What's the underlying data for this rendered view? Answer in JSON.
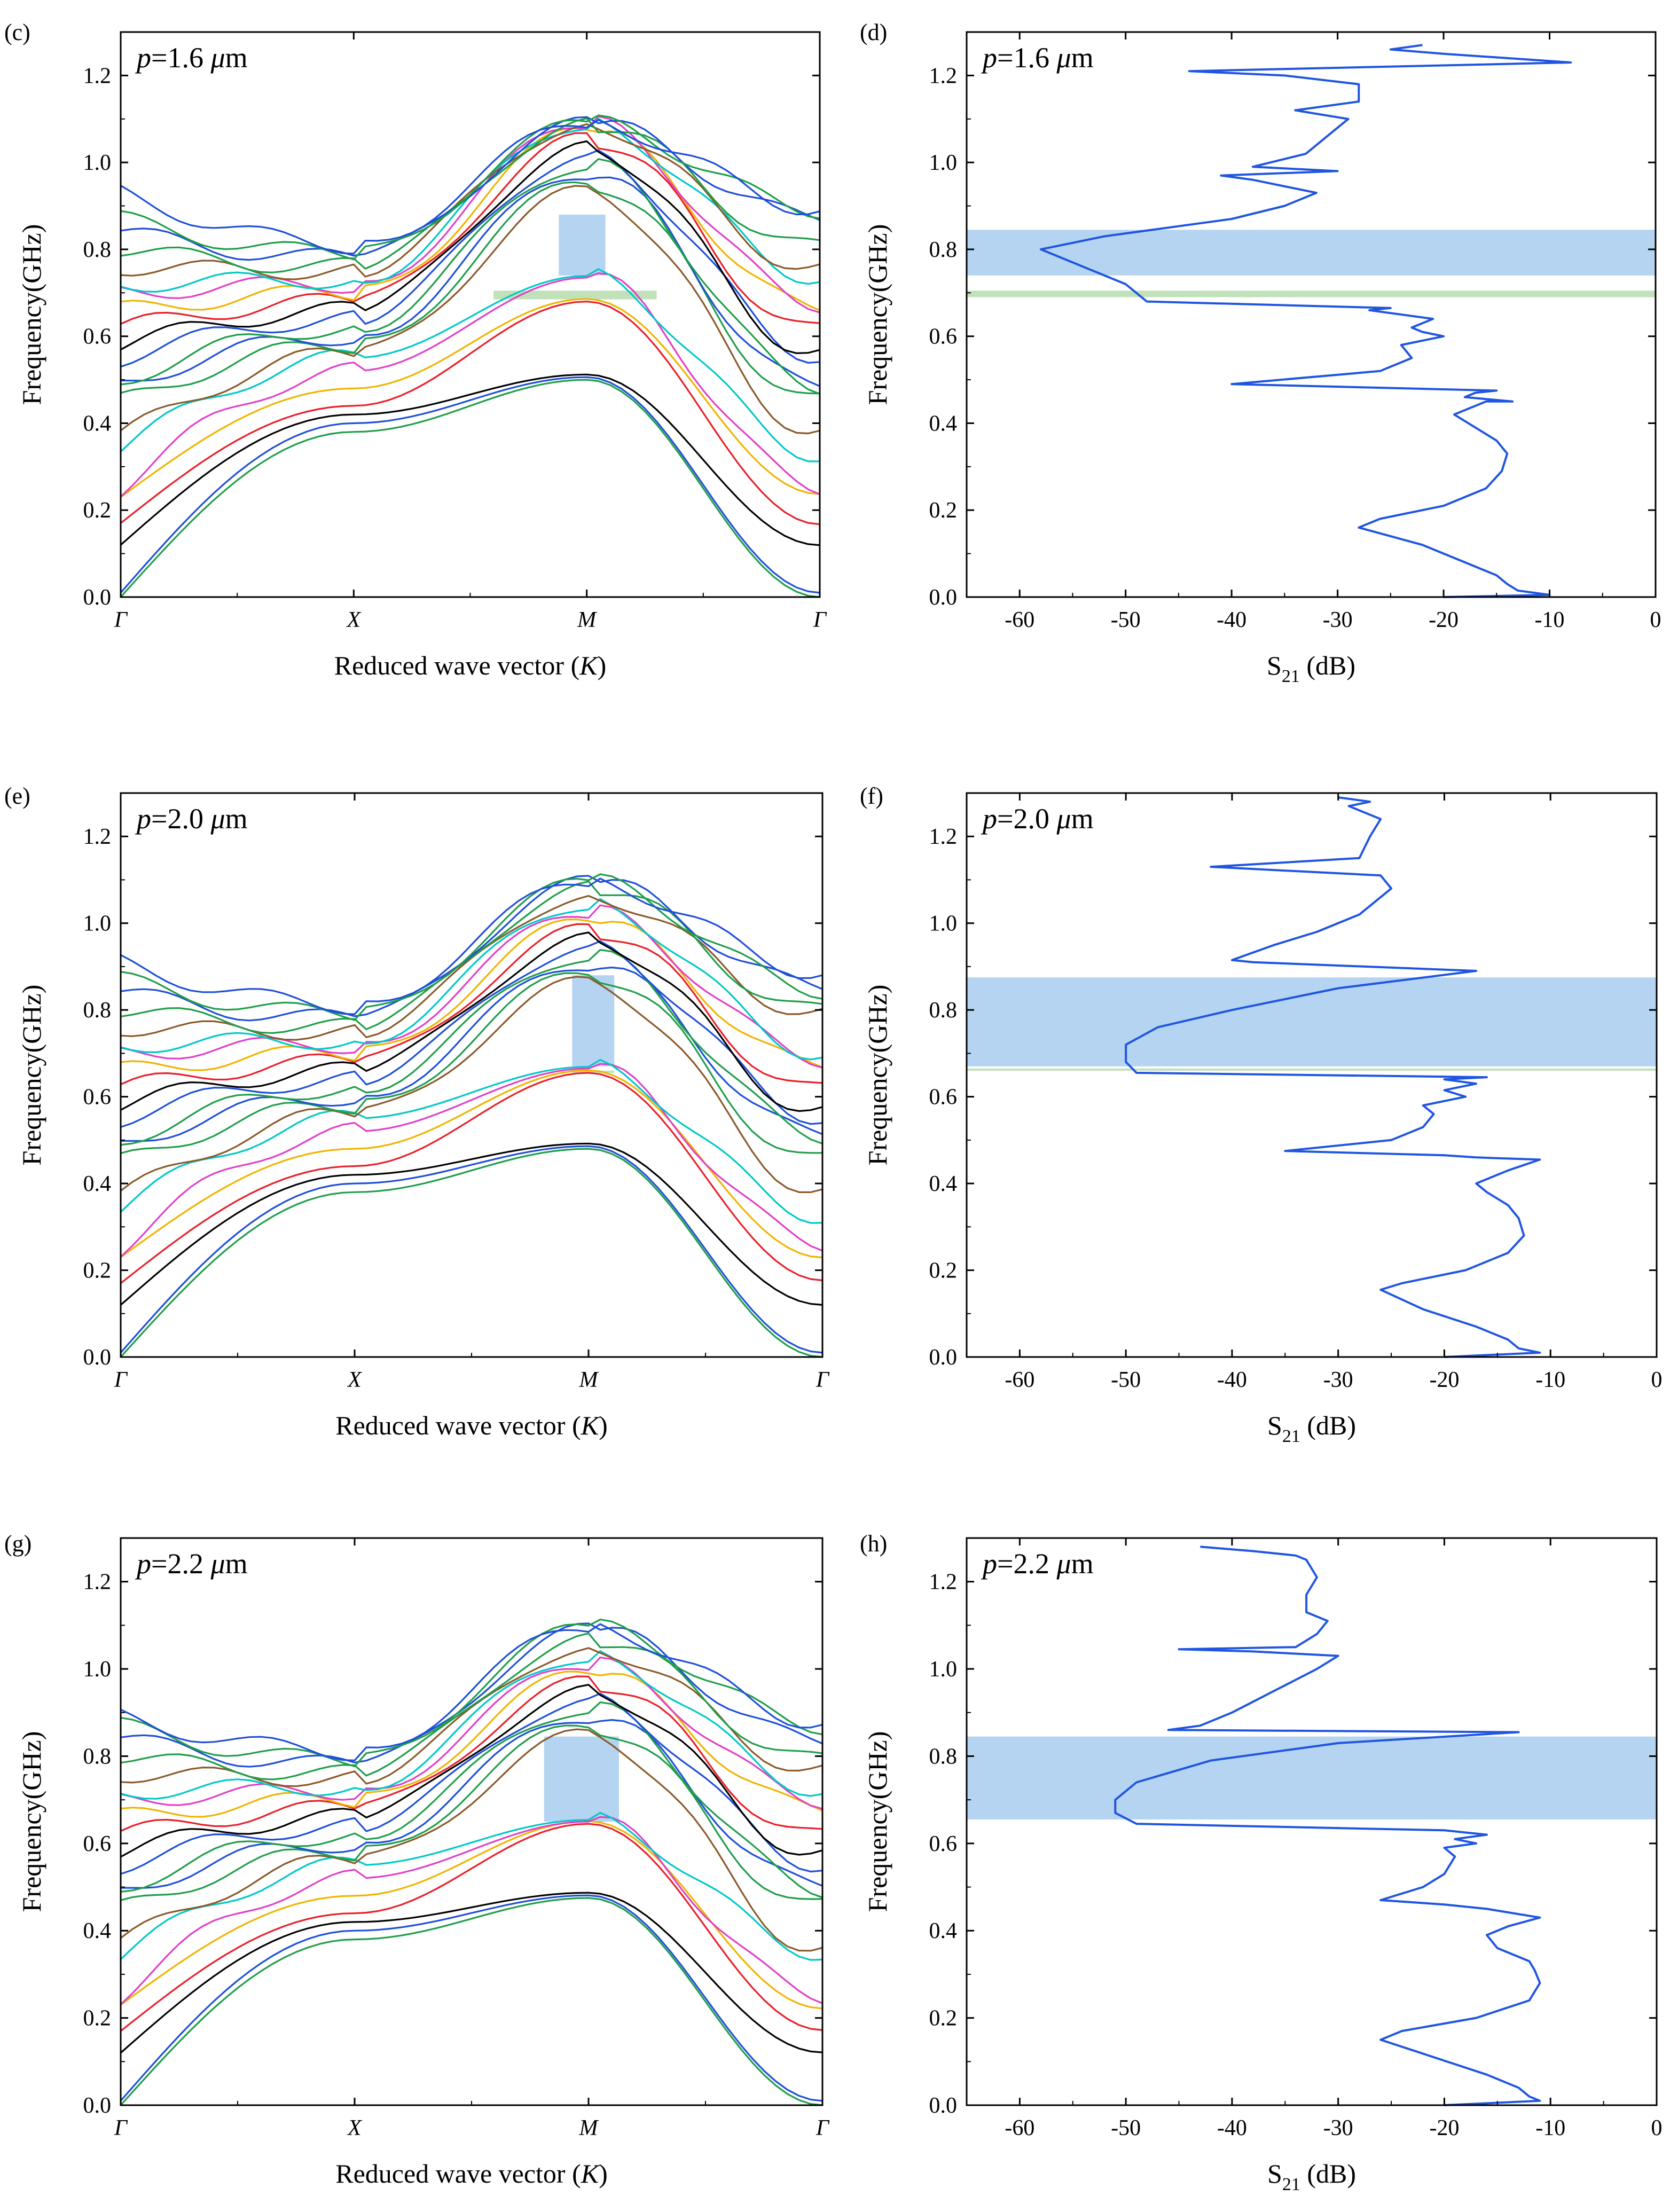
{
  "figure": {
    "colors": {
      "band_palette": [
        "#1f9e4a",
        "#1f4fd8",
        "#000000",
        "#e8202a",
        "#f0b400",
        "#e040c8",
        "#00c8c8",
        "#8a5a2a",
        "#1f9e4a",
        "#1f4fd8"
      ],
      "s21_line": "#1f55e0",
      "gap_blue": "#a8cdee",
      "gap_green": "#b6dcae"
    }
  },
  "chart_data": [
    {
      "id": "c",
      "panel_label": "(c)",
      "type": "line",
      "title": "p=1.6 μm",
      "annotation": {
        "sym": "p",
        "rest": "=1.6 ",
        "unit_sym": "μ",
        "unit": "m"
      },
      "xlabel": "Reduced wave vector (K)",
      "xlabel_parts": {
        "pre": "Reduced wave vector (",
        "sym": "K",
        "post": ")"
      },
      "ylabel": "Frequency(GHz)",
      "x_ticks": [
        "Γ",
        "X",
        "M",
        "Γ"
      ],
      "x_tick_positions": [
        0,
        1,
        2,
        3
      ],
      "xlim": [
        0,
        3
      ],
      "ylim": [
        0,
        1.3
      ],
      "y_ticks": [
        "0.0",
        "0.2",
        "0.4",
        "0.6",
        "0.8",
        "1.0",
        "1.2"
      ],
      "y_tick_values": [
        0,
        0.2,
        0.4,
        0.6,
        0.8,
        1.0,
        1.2
      ],
      "gaps": [
        {
          "kind": "blue",
          "x": [
            1.88,
            2.08
          ],
          "y": [
            0.74,
            0.88
          ]
        },
        {
          "kind": "green",
          "x": [
            1.6,
            2.3
          ],
          "y": [
            0.685,
            0.705
          ]
        }
      ],
      "band_params": {
        "top": 1.09,
        "acoustic": 0.5,
        "opt_low": 0.68,
        "opt_gap": 0.735,
        "edge_max": 0.93
      }
    },
    {
      "id": "d",
      "panel_label": "(d)",
      "type": "line",
      "title": "p=1.6 μm",
      "annotation": {
        "sym": "p",
        "rest": "=1.6 ",
        "unit_sym": "μ",
        "unit": "m"
      },
      "xlabel": "S21 (dB)",
      "xlabel_parts": {
        "pre": "S",
        "sub": "21",
        "post": " (dB)"
      },
      "ylabel": "Frequency(GHz)",
      "xlim": [
        -65,
        0
      ],
      "ylim": [
        0,
        1.3
      ],
      "x_ticks": [
        "-60",
        "-50",
        "-40",
        "-30",
        "-20",
        "-10",
        "0"
      ],
      "x_tick_values": [
        -60,
        -50,
        -40,
        -30,
        -20,
        -10,
        0
      ],
      "y_ticks": [
        "0.0",
        "0.2",
        "0.4",
        "0.6",
        "0.8",
        "1.0",
        "1.2"
      ],
      "y_tick_values": [
        0,
        0.2,
        0.4,
        0.6,
        0.8,
        1.0,
        1.2
      ],
      "gaps": [
        {
          "kind": "blue",
          "y": [
            0.74,
            0.845
          ]
        },
        {
          "kind": "green",
          "y": [
            0.69,
            0.705
          ]
        }
      ],
      "series": [
        {
          "name": "S21",
          "points": [
            [
              -20,
              0.0
            ],
            [
              -10,
              0.005
            ],
            [
              -13,
              0.015
            ],
            [
              -14,
              0.03
            ],
            [
              -15,
              0.05
            ],
            [
              -18,
              0.08
            ],
            [
              -22,
              0.12
            ],
            [
              -28,
              0.16
            ],
            [
              -26,
              0.18
            ],
            [
              -20,
              0.21
            ],
            [
              -16,
              0.25
            ],
            [
              -14.5,
              0.29
            ],
            [
              -14,
              0.33
            ],
            [
              -15,
              0.36
            ],
            [
              -17,
              0.39
            ],
            [
              -19,
              0.42
            ],
            [
              -16,
              0.45
            ],
            [
              -13.5,
              0.45
            ],
            [
              -18,
              0.46
            ],
            [
              -17,
              0.47
            ],
            [
              -15,
              0.475
            ],
            [
              -40,
              0.49
            ],
            [
              -26,
              0.52
            ],
            [
              -23,
              0.55
            ],
            [
              -24,
              0.58
            ],
            [
              -20,
              0.6
            ],
            [
              -22,
              0.61
            ],
            [
              -23,
              0.62
            ],
            [
              -21,
              0.64
            ],
            [
              -27,
              0.66
            ],
            [
              -25,
              0.665
            ],
            [
              -48,
              0.68
            ],
            [
              -50,
              0.72
            ],
            [
              -54,
              0.76
            ],
            [
              -58,
              0.8
            ],
            [
              -52,
              0.83
            ],
            [
              -40,
              0.87
            ],
            [
              -35,
              0.9
            ],
            [
              -32,
              0.93
            ],
            [
              -38,
              0.96
            ],
            [
              -41,
              0.97
            ],
            [
              -30,
              0.98
            ],
            [
              -38,
              0.99
            ],
            [
              -33,
              1.02
            ],
            [
              -31,
              1.06
            ],
            [
              -29,
              1.1
            ],
            [
              -34,
              1.12
            ],
            [
              -28,
              1.14
            ],
            [
              -28,
              1.18
            ],
            [
              -35,
              1.2
            ],
            [
              -44,
              1.21
            ],
            [
              -8,
              1.23
            ],
            [
              -20,
              1.25
            ],
            [
              -25,
              1.26
            ],
            [
              -22,
              1.27
            ]
          ]
        }
      ]
    },
    {
      "id": "e",
      "panel_label": "(e)",
      "type": "line",
      "title": "p=2.0 μm",
      "annotation": {
        "sym": "p",
        "rest": "=2.0 ",
        "unit_sym": "μ",
        "unit": "m"
      },
      "xlabel": "Reduced wave vector (K)",
      "xlabel_parts": {
        "pre": "Reduced wave vector (",
        "sym": "K",
        "post": ")"
      },
      "ylabel": "Frequency(GHz)",
      "x_ticks": [
        "Γ",
        "X",
        "M",
        "Γ"
      ],
      "x_tick_positions": [
        0,
        1,
        2,
        3
      ],
      "xlim": [
        0,
        3
      ],
      "ylim": [
        0,
        1.3
      ],
      "y_ticks": [
        "0.0",
        "0.2",
        "0.4",
        "0.6",
        "0.8",
        "1.0",
        "1.2"
      ],
      "y_tick_values": [
        0,
        0.2,
        0.4,
        0.6,
        0.8,
        1.0,
        1.2
      ],
      "gaps": [
        {
          "kind": "blue",
          "x": [
            1.93,
            2.11
          ],
          "y": [
            0.67,
            0.88
          ]
        },
        {
          "kind": "green",
          "x": [
            1.93,
            2.11
          ],
          "y": [
            0.655,
            0.66
          ]
        }
      ],
      "band_params": {
        "top": 1.095,
        "acoustic": 0.48,
        "opt_low": 0.655,
        "opt_gap": 0.665,
        "edge_max": 0.89
      }
    },
    {
      "id": "f",
      "panel_label": "(f)",
      "type": "line",
      "title": "p=2.0 μm",
      "annotation": {
        "sym": "p",
        "rest": "=2.0 ",
        "unit_sym": "μ",
        "unit": "m"
      },
      "xlabel": "S21 (dB)",
      "xlabel_parts": {
        "pre": "S",
        "sub": "21",
        "post": " (dB)"
      },
      "ylabel": "Frequency(GHz)",
      "xlim": [
        -65,
        0
      ],
      "ylim": [
        0,
        1.3
      ],
      "x_ticks": [
        "-60",
        "-50",
        "-40",
        "-30",
        "-20",
        "-10",
        "0"
      ],
      "x_tick_values": [
        -60,
        -50,
        -40,
        -30,
        -20,
        -10,
        0
      ],
      "y_ticks": [
        "0.0",
        "0.2",
        "0.4",
        "0.6",
        "0.8",
        "1.0",
        "1.2"
      ],
      "y_tick_values": [
        0,
        0.2,
        0.4,
        0.6,
        0.8,
        1.0,
        1.2
      ],
      "gaps": [
        {
          "kind": "blue",
          "y": [
            0.67,
            0.875
          ]
        },
        {
          "kind": "green",
          "y": [
            0.66,
            0.665
          ]
        }
      ],
      "series": [
        {
          "name": "S21",
          "points": [
            [
              -20,
              0.0
            ],
            [
              -11,
              0.01
            ],
            [
              -13,
              0.02
            ],
            [
              -14,
              0.04
            ],
            [
              -17,
              0.07
            ],
            [
              -22,
              0.11
            ],
            [
              -26,
              0.155
            ],
            [
              -24,
              0.17
            ],
            [
              -18,
              0.2
            ],
            [
              -14,
              0.24
            ],
            [
              -12.5,
              0.28
            ],
            [
              -13,
              0.32
            ],
            [
              -14,
              0.35
            ],
            [
              -16,
              0.38
            ],
            [
              -17,
              0.4
            ],
            [
              -14,
              0.43
            ],
            [
              -11,
              0.455
            ],
            [
              -17,
              0.46
            ],
            [
              -20,
              0.465
            ],
            [
              -35,
              0.475
            ],
            [
              -25,
              0.5
            ],
            [
              -22,
              0.53
            ],
            [
              -21,
              0.56
            ],
            [
              -22,
              0.58
            ],
            [
              -18,
              0.6
            ],
            [
              -20,
              0.615
            ],
            [
              -17,
              0.63
            ],
            [
              -20,
              0.64
            ],
            [
              -16,
              0.645
            ],
            [
              -49,
              0.655
            ],
            [
              -50,
              0.68
            ],
            [
              -50,
              0.72
            ],
            [
              -47,
              0.76
            ],
            [
              -40,
              0.8
            ],
            [
              -30,
              0.85
            ],
            [
              -17,
              0.89
            ],
            [
              -38,
              0.91
            ],
            [
              -40,
              0.915
            ],
            [
              -36,
              0.95
            ],
            [
              -32,
              0.98
            ],
            [
              -28,
              1.02
            ],
            [
              -25,
              1.08
            ],
            [
              -26,
              1.11
            ],
            [
              -42,
              1.13
            ],
            [
              -28,
              1.15
            ],
            [
              -27,
              1.2
            ],
            [
              -26,
              1.24
            ],
            [
              -29,
              1.27
            ],
            [
              -27,
              1.28
            ],
            [
              -30,
              1.29
            ]
          ]
        }
      ]
    },
    {
      "id": "g",
      "panel_label": "(g)",
      "type": "line",
      "title": "p=2.2 μm",
      "annotation": {
        "sym": "p",
        "rest": "=2.2 ",
        "unit_sym": "μ",
        "unit": "m"
      },
      "xlabel": "Reduced wave vector (K)",
      "xlabel_parts": {
        "pre": "Reduced wave vector (",
        "sym": "K",
        "post": ")"
      },
      "ylabel": "Frequency(GHz)",
      "x_ticks": [
        "Γ",
        "X",
        "M",
        "Γ"
      ],
      "x_tick_positions": [
        0,
        1,
        2,
        3
      ],
      "xlim": [
        0,
        3
      ],
      "ylim": [
        0,
        1.3
      ],
      "y_ticks": [
        "0.0",
        "0.2",
        "0.4",
        "0.6",
        "0.8",
        "1.0",
        "1.2"
      ],
      "y_tick_values": [
        0,
        0.2,
        0.4,
        0.6,
        0.8,
        1.0,
        1.2
      ],
      "gaps": [
        {
          "kind": "blue",
          "x": [
            1.81,
            2.13
          ],
          "y": [
            0.65,
            0.845
          ]
        }
      ],
      "band_params": {
        "top": 1.095,
        "acoustic": 0.475,
        "opt_low": 0.645,
        "opt_gap": 0.65,
        "edge_max": 0.87
      }
    },
    {
      "id": "h",
      "panel_label": "(h)",
      "type": "line",
      "title": "p=2.2 μm",
      "annotation": {
        "sym": "p",
        "rest": "=2.2 ",
        "unit_sym": "μ",
        "unit": "m"
      },
      "xlabel": "S21 (dB)",
      "xlabel_parts": {
        "pre": "S",
        "sub": "21",
        "post": " (dB)"
      },
      "ylabel": "Frequency(GHz)",
      "xlim": [
        -65,
        0
      ],
      "ylim": [
        0,
        1.3
      ],
      "x_ticks": [
        "-60",
        "-50",
        "-40",
        "-30",
        "-20",
        "-10",
        "0"
      ],
      "x_tick_values": [
        -60,
        -50,
        -40,
        -30,
        -20,
        -10,
        0
      ],
      "y_ticks": [
        "0.0",
        "0.2",
        "0.4",
        "0.6",
        "0.8",
        "1.0",
        "1.2"
      ],
      "y_tick_values": [
        0,
        0.2,
        0.4,
        0.6,
        0.8,
        1.0,
        1.2
      ],
      "gaps": [
        {
          "kind": "blue",
          "y": [
            0.655,
            0.845
          ]
        }
      ],
      "series": [
        {
          "name": "S21",
          "points": [
            [
              -20,
              0.0
            ],
            [
              -11,
              0.01
            ],
            [
              -12,
              0.02
            ],
            [
              -13,
              0.04
            ],
            [
              -16,
              0.07
            ],
            [
              -21,
              0.11
            ],
            [
              -26,
              0.15
            ],
            [
              -24,
              0.17
            ],
            [
              -17,
              0.2
            ],
            [
              -12,
              0.24
            ],
            [
              -11,
              0.28
            ],
            [
              -11.5,
              0.31
            ],
            [
              -12,
              0.33
            ],
            [
              -15,
              0.36
            ],
            [
              -16,
              0.39
            ],
            [
              -14,
              0.41
            ],
            [
              -11,
              0.43
            ],
            [
              -16,
              0.45
            ],
            [
              -20,
              0.46
            ],
            [
              -26,
              0.47
            ],
            [
              -22,
              0.5
            ],
            [
              -20,
              0.53
            ],
            [
              -19,
              0.57
            ],
            [
              -20,
              0.59
            ],
            [
              -17,
              0.6
            ],
            [
              -19,
              0.61
            ],
            [
              -16,
              0.62
            ],
            [
              -20,
              0.63
            ],
            [
              -49,
              0.645
            ],
            [
              -51,
              0.67
            ],
            [
              -51,
              0.7
            ],
            [
              -49,
              0.74
            ],
            [
              -42,
              0.79
            ],
            [
              -30,
              0.83
            ],
            [
              -13,
              0.855
            ],
            [
              -46,
              0.86
            ],
            [
              -43,
              0.87
            ],
            [
              -40,
              0.9
            ],
            [
              -36,
              0.95
            ],
            [
              -32,
              1.0
            ],
            [
              -30,
              1.03
            ],
            [
              -38,
              1.04
            ],
            [
              -45,
              1.045
            ],
            [
              -34,
              1.05
            ],
            [
              -32,
              1.08
            ],
            [
              -31,
              1.11
            ],
            [
              -33,
              1.13
            ],
            [
              -33,
              1.17
            ],
            [
              -32,
              1.21
            ],
            [
              -33,
              1.25
            ],
            [
              -34,
              1.26
            ],
            [
              -38,
              1.27
            ],
            [
              -43,
              1.28
            ]
          ]
        }
      ]
    }
  ]
}
